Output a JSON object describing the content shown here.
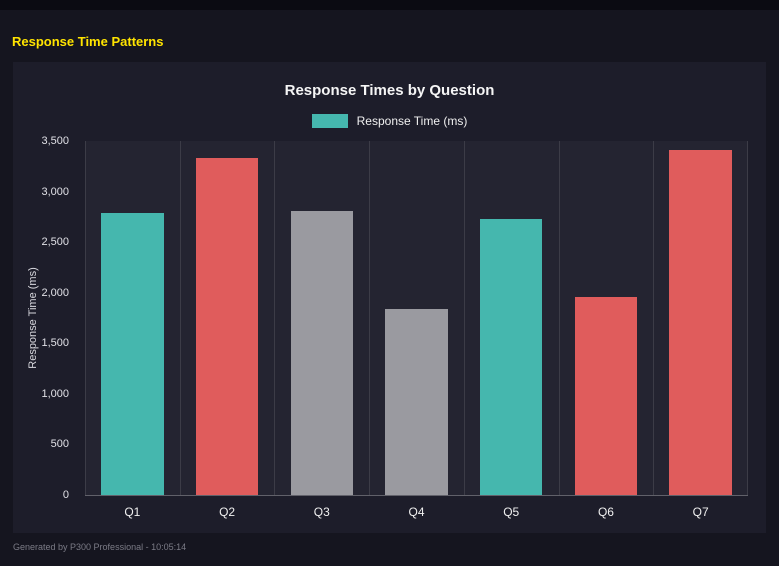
{
  "header": {
    "title": "Response Time Patterns"
  },
  "footer": {
    "note": "Generated by P300 Professional - 10:05:14"
  },
  "chart_data": {
    "type": "bar",
    "title": "Response Times by Question",
    "legend": "Response Time (ms)",
    "legend_color": "#45b7ae",
    "legend_position": "top",
    "xlabel": "",
    "ylabel": "Response Time (ms)",
    "categories": [
      "Q1",
      "Q2",
      "Q3",
      "Q4",
      "Q5",
      "Q6",
      "Q7"
    ],
    "values": [
      2790,
      3330,
      2810,
      1840,
      2730,
      1960,
      3410
    ],
    "bar_colors": [
      "#45b7ae",
      "#e05c5c",
      "#9a9aa0",
      "#9a9aa0",
      "#45b7ae",
      "#e05c5c",
      "#e05c5c"
    ],
    "ylim": [
      0,
      3500
    ],
    "ytick_step": 500,
    "ytick_labels": [
      "0",
      "500",
      "1,000",
      "1,500",
      "2,000",
      "2,500",
      "3,000",
      "3,500"
    ],
    "grid": "vertical"
  }
}
